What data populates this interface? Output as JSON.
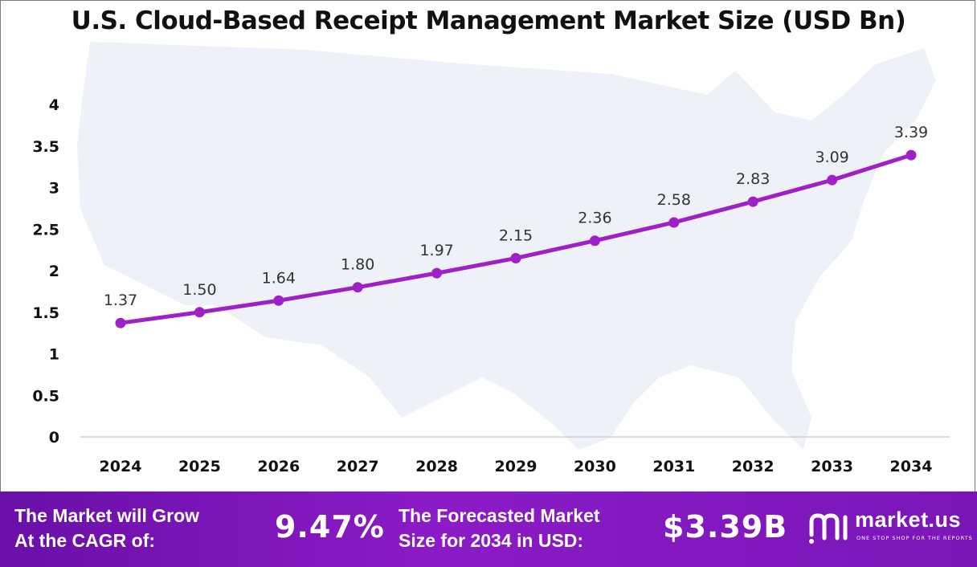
{
  "chart_data": {
    "type": "line",
    "title": "U.S. Cloud-Based Receipt Management Market Size (USD Bn)",
    "categories": [
      "2024",
      "2025",
      "2026",
      "2027",
      "2028",
      "2029",
      "2030",
      "2031",
      "2032",
      "2033",
      "2034"
    ],
    "values": [
      1.37,
      1.5,
      1.64,
      1.8,
      1.97,
      2.15,
      2.36,
      2.58,
      2.83,
      3.09,
      3.39
    ],
    "data_labels": [
      "1.37",
      "1.50",
      "1.64",
      "1.80",
      "1.97",
      "2.15",
      "2.36",
      "2.58",
      "2.83",
      "3.09",
      "3.39"
    ],
    "yticks": [
      "0",
      "0.5",
      "1",
      "1.5",
      "2",
      "2.5",
      "3",
      "3.5",
      "4"
    ],
    "ylim": [
      0,
      4
    ],
    "grid": false,
    "line_color": "#a020c8",
    "background_map": "us-map-silhouette"
  },
  "footer": {
    "cagr_label_line1": "The Market will Grow",
    "cagr_label_line2": "At the CAGR of:",
    "cagr_value": "9.47%",
    "forecast_label_line1": "The Forecasted Market",
    "forecast_label_line2": "Size for 2034 in USD:",
    "forecast_value": "$3.39B",
    "brand_name": "market.us",
    "brand_tagline": "ONE STOP SHOP FOR THE REPORTS",
    "brand_icon": "market-us-logo-icon"
  }
}
